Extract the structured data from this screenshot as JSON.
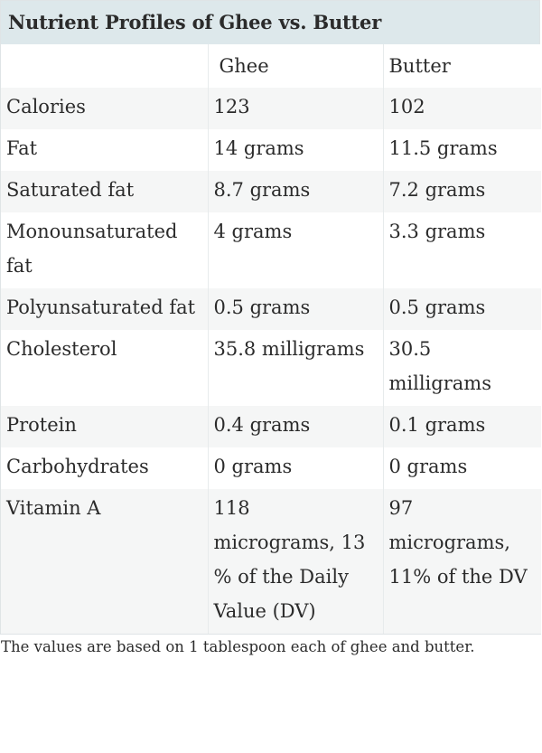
{
  "title": "Nutrient Profiles of Ghee vs. Butter",
  "columns": [
    "",
    "Ghee",
    "Butter"
  ],
  "rows": [
    {
      "nutrient": "Calories",
      "ghee": "123",
      "butter": "102"
    },
    {
      "nutrient": "Fat",
      "ghee": "14 grams",
      "butter": "11.5 grams"
    },
    {
      "nutrient": "Saturated fat",
      "ghee": "8.7 grams",
      "butter": "7.2 grams"
    },
    {
      "nutrient": "Monounsaturated fat",
      "ghee": "4 grams",
      "butter": "3.3 grams"
    },
    {
      "nutrient": "Polyunsaturated fat",
      "ghee": "0.5 grams",
      "butter": "0.5 grams"
    },
    {
      "nutrient": "Cholesterol",
      "ghee": "35.8 milligrams",
      "butter": "30.5 milligrams"
    },
    {
      "nutrient": "Protein",
      "ghee": "0.4 grams",
      "butter": "0.1 grams"
    },
    {
      "nutrient": "Carbohydrates",
      "ghee": "0 grams",
      "butter": "0 grams"
    },
    {
      "nutrient": "Vitamin A",
      "ghee": "118 micrograms, 13 % of the Daily Value (DV)",
      "butter": "97 micrograms, 11% of the DV"
    }
  ],
  "footnote": "The values are based on 1 tablespoon each of ghee and butter.",
  "colors": {
    "caption_bg": "#dde8eb",
    "stripe_bg": "#f5f6f6",
    "text": "#2b2b2b"
  }
}
